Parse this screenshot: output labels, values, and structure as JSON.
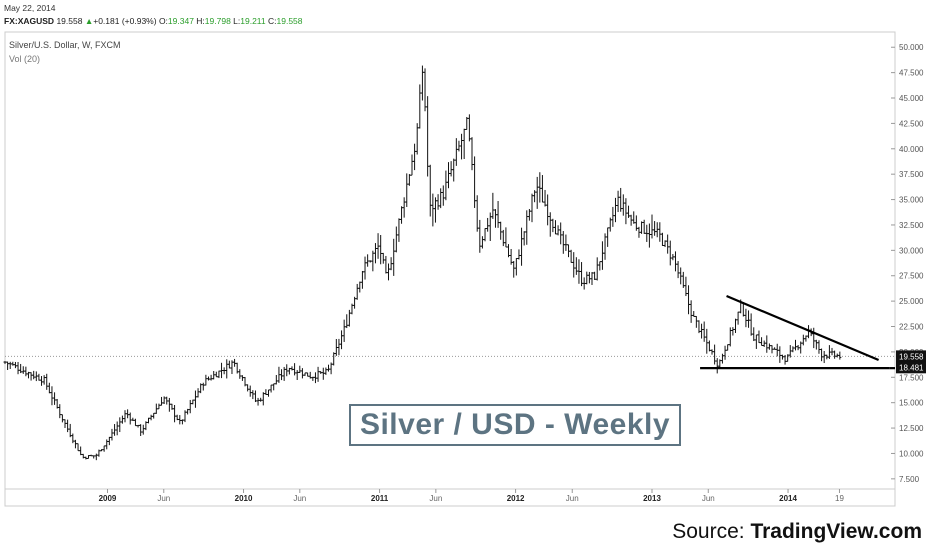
{
  "header": {
    "date": "May 22, 2014",
    "symbol": "FX:XAGUSD",
    "last": "19.558",
    "change_icon": "triangle-up-icon",
    "change": "+0.181 (+0.93%)",
    "open_label": "O:",
    "open": "19.347",
    "high_label": "H:",
    "high": "19.798",
    "low_label": "L:",
    "low": "19.211",
    "close_label": "C:",
    "close": "19.558"
  },
  "chart_title": "Silver/U.S. Dollar, W, FXCM",
  "volume_label": "Vol (20)",
  "banner": "Silver / USD - Weekly",
  "source": {
    "prefix": "Source: ",
    "name": "TradingView.com"
  },
  "colors": {
    "bars": "#111111",
    "axis_text": "#555555",
    "banner": "#5d7482",
    "price_line": "#999999",
    "change_up": "#2a9d2a"
  },
  "chart_data": {
    "type": "ohlc",
    "title": "Silver/U.S. Dollar, W, FXCM",
    "ylim": [
      6.5,
      51.5
    ],
    "y_ticks": [
      7.5,
      10,
      12.5,
      15,
      17.5,
      20,
      22.5,
      25,
      27.5,
      30,
      32.5,
      35,
      37.5,
      40,
      42.5,
      45,
      47.5,
      50
    ],
    "y_tick_labels": [
      "7.500",
      "10.000",
      "12.500",
      "15.000",
      "17.500",
      "20.000",
      "22.500",
      "25.000",
      "27.500",
      "30.000",
      "32.500",
      "35.000",
      "37.500",
      "40.000",
      "42.500",
      "45.000",
      "47.500",
      "50.000"
    ],
    "x_ticks": [
      {
        "date": "2009-01-01",
        "label": "2009",
        "bold": true
      },
      {
        "date": "2009-06-01",
        "label": "Jun",
        "bold": false
      },
      {
        "date": "2010-01-01",
        "label": "2010",
        "bold": true
      },
      {
        "date": "2010-06-01",
        "label": "Jun",
        "bold": false
      },
      {
        "date": "2011-01-01",
        "label": "2011",
        "bold": true
      },
      {
        "date": "2011-06-01",
        "label": "Jun",
        "bold": false
      },
      {
        "date": "2012-01-01",
        "label": "2012",
        "bold": true
      },
      {
        "date": "2012-06-01",
        "label": "Jun",
        "bold": false
      },
      {
        "date": "2013-01-01",
        "label": "2013",
        "bold": true
      },
      {
        "date": "2013-06-01",
        "label": "Jun",
        "bold": false
      },
      {
        "date": "2014-01-01",
        "label": "2014",
        "bold": true
      },
      {
        "date": "2014-05-19",
        "label": "19",
        "bold": false
      }
    ],
    "price_labels": [
      {
        "value": 19.558,
        "label": "19.558"
      },
      {
        "value": 18.481,
        "label": "18.481"
      }
    ],
    "trendlines": [
      {
        "name": "",
        "x1": "2013-07-20",
        "y1": 25.5,
        "x2": "2014-09-01",
        "y2": 19.2
      },
      {
        "name": "",
        "x1": "2013-05-10",
        "y1": 18.4,
        "x2": "2014-10-01",
        "y2": 18.4
      }
    ],
    "series": [
      {
        "name": "",
        "points": [
          {
            "date": "2008-04-01",
            "close": 19.0
          },
          {
            "date": "2008-07-15",
            "close": 17.2
          },
          {
            "date": "2008-09-01",
            "close": 13.5
          },
          {
            "date": "2008-10-25",
            "close": 9.6
          },
          {
            "date": "2008-12-01",
            "close": 9.8
          },
          {
            "date": "2009-01-01",
            "close": 11.3
          },
          {
            "date": "2009-02-20",
            "close": 14.0
          },
          {
            "date": "2009-04-01",
            "close": 12.2
          },
          {
            "date": "2009-06-01",
            "close": 15.5
          },
          {
            "date": "2009-07-15",
            "close": 13.0
          },
          {
            "date": "2009-09-15",
            "close": 17.0
          },
          {
            "date": "2009-12-05",
            "close": 19.0
          },
          {
            "date": "2010-02-05",
            "close": 15.0
          },
          {
            "date": "2010-05-01",
            "close": 18.5
          },
          {
            "date": "2010-07-01",
            "close": 17.6
          },
          {
            "date": "2010-08-15",
            "close": 18.0
          },
          {
            "date": "2010-10-01",
            "close": 22.5
          },
          {
            "date": "2010-11-15",
            "close": 28.0
          },
          {
            "date": "2010-12-31",
            "close": 30.5
          },
          {
            "date": "2011-01-20",
            "close": 27.0
          },
          {
            "date": "2011-03-01",
            "close": 34.0
          },
          {
            "date": "2011-04-10",
            "close": 41.0
          },
          {
            "date": "2011-04-28",
            "close": 48.5
          },
          {
            "date": "2011-05-15",
            "close": 34.0
          },
          {
            "date": "2011-06-20",
            "close": 35.5
          },
          {
            "date": "2011-08-01",
            "close": 40.0
          },
          {
            "date": "2011-08-25",
            "close": 42.5
          },
          {
            "date": "2011-09-25",
            "close": 30.5
          },
          {
            "date": "2011-11-01",
            "close": 34.0
          },
          {
            "date": "2011-12-28",
            "close": 28.0
          },
          {
            "date": "2012-02-25",
            "close": 36.5
          },
          {
            "date": "2012-05-01",
            "close": 31.0
          },
          {
            "date": "2012-06-28",
            "close": 27.0
          },
          {
            "date": "2012-08-01",
            "close": 27.5
          },
          {
            "date": "2012-10-01",
            "close": 35.0
          },
          {
            "date": "2012-11-15",
            "close": 32.5
          },
          {
            "date": "2013-01-20",
            "close": 31.5
          },
          {
            "date": "2013-03-01",
            "close": 29.0
          },
          {
            "date": "2013-04-20",
            "close": 23.5
          },
          {
            "date": "2013-06-28",
            "close": 18.7
          },
          {
            "date": "2013-08-28",
            "close": 24.5
          },
          {
            "date": "2013-10-01",
            "close": 21.5
          },
          {
            "date": "2013-12-28",
            "close": 19.3
          },
          {
            "date": "2014-02-25",
            "close": 22.0
          },
          {
            "date": "2014-04-01",
            "close": 19.8
          },
          {
            "date": "2014-05-22",
            "close": 19.558
          }
        ]
      }
    ]
  }
}
